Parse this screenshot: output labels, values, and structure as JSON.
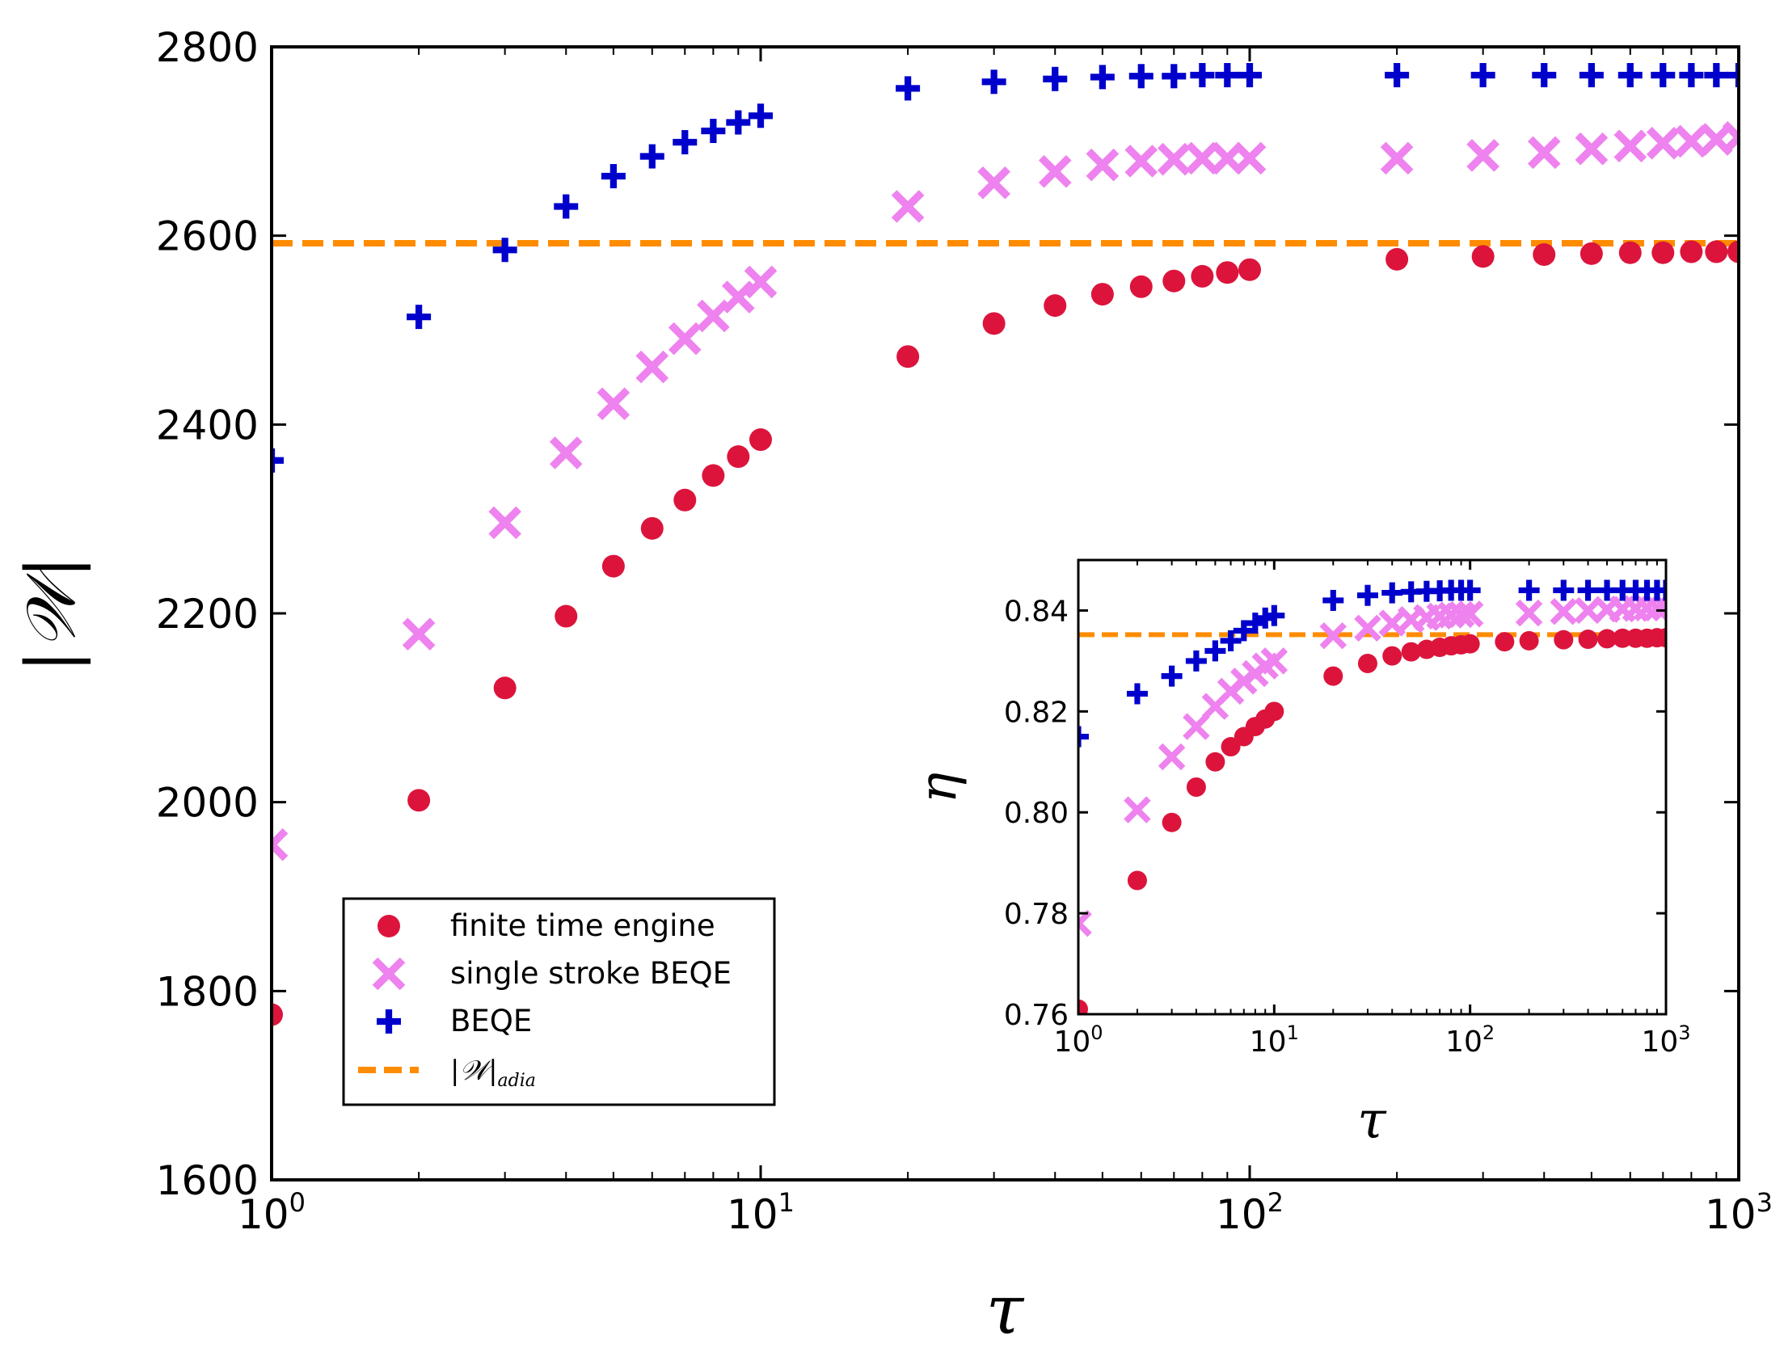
{
  "colors": {
    "finite": "#dc143c",
    "single": "#ee82ee",
    "beqe": "#0000cd",
    "adia": "#ff8c00"
  },
  "chart_data": [
    {
      "id": "main",
      "type": "scatter",
      "xscale": "log",
      "xlim": [
        1,
        1000
      ],
      "ylim": [
        1600,
        2800
      ],
      "xlabel": "τ",
      "ylabel": "|𝒲|",
      "xticks": [
        {
          "value": 1,
          "base": "10",
          "exp": "0"
        },
        {
          "value": 10,
          "base": "10",
          "exp": "1"
        },
        {
          "value": 100,
          "base": "10",
          "exp": "2"
        },
        {
          "value": 1000,
          "base": "10",
          "exp": "3"
        }
      ],
      "yticks": [
        {
          "value": 1600,
          "label": "1600"
        },
        {
          "value": 1800,
          "label": "1800"
        },
        {
          "value": 2000,
          "label": "2000"
        },
        {
          "value": 2200,
          "label": "2200"
        },
        {
          "value": 2400,
          "label": "2400"
        },
        {
          "value": 2600,
          "label": "2600"
        },
        {
          "value": 2800,
          "label": "2800"
        }
      ],
      "legend_position": "lower-left",
      "series": [
        {
          "name": "finite time engine",
          "marker": "circle",
          "color_key": "finite",
          "points": [
            [
              1,
              1775
            ],
            [
              2,
              2002
            ],
            [
              3,
              2121
            ],
            [
              4,
              2197
            ],
            [
              5,
              2250
            ],
            [
              6,
              2290
            ],
            [
              7,
              2320
            ],
            [
              8,
              2346
            ],
            [
              9,
              2366
            ],
            [
              10,
              2384
            ],
            [
              20,
              2472
            ],
            [
              30,
              2507
            ],
            [
              40,
              2526
            ],
            [
              50,
              2538
            ],
            [
              60,
              2546
            ],
            [
              70,
              2552
            ],
            [
              80,
              2557
            ],
            [
              90,
              2561
            ],
            [
              100,
              2564
            ],
            [
              200,
              2575
            ],
            [
              300,
              2578
            ],
            [
              400,
              2580
            ],
            [
              500,
              2581
            ],
            [
              600,
              2582
            ],
            [
              700,
              2582
            ],
            [
              800,
              2583
            ],
            [
              900,
              2583
            ],
            [
              1000,
              2583
            ]
          ]
        },
        {
          "name": "single stroke BEQE",
          "marker": "x",
          "color_key": "single",
          "points": [
            [
              1,
              1955
            ],
            [
              2,
              2178
            ],
            [
              3,
              2296
            ],
            [
              4,
              2370
            ],
            [
              5,
              2422
            ],
            [
              6,
              2461
            ],
            [
              7,
              2491
            ],
            [
              8,
              2515
            ],
            [
              9,
              2535
            ],
            [
              10,
              2551
            ],
            [
              20,
              2631
            ],
            [
              30,
              2656
            ],
            [
              40,
              2668
            ],
            [
              50,
              2675
            ],
            [
              60,
              2679
            ],
            [
              70,
              2681
            ],
            [
              80,
              2682
            ],
            [
              90,
              2682
            ],
            [
              100,
              2682
            ],
            [
              200,
              2682
            ],
            [
              300,
              2685
            ],
            [
              400,
              2688
            ],
            [
              500,
              2692
            ],
            [
              600,
              2695
            ],
            [
              700,
              2698
            ],
            [
              800,
              2700
            ],
            [
              900,
              2702
            ],
            [
              1000,
              2704
            ]
          ]
        },
        {
          "name": "BEQE",
          "marker": "plus",
          "color_key": "beqe",
          "points": [
            [
              1,
              2362
            ],
            [
              2,
              2514
            ],
            [
              3,
              2585
            ],
            [
              4,
              2631
            ],
            [
              5,
              2663
            ],
            [
              6,
              2684
            ],
            [
              7,
              2699
            ],
            [
              8,
              2711
            ],
            [
              9,
              2720
            ],
            [
              10,
              2727
            ],
            [
              20,
              2756
            ],
            [
              30,
              2763
            ],
            [
              40,
              2766
            ],
            [
              50,
              2768
            ],
            [
              60,
              2769
            ],
            [
              70,
              2769
            ],
            [
              80,
              2770
            ],
            [
              90,
              2770
            ],
            [
              100,
              2770
            ],
            [
              200,
              2770
            ],
            [
              300,
              2770
            ],
            [
              400,
              2770
            ],
            [
              500,
              2770
            ],
            [
              600,
              2770
            ],
            [
              700,
              2770
            ],
            [
              800,
              2770
            ],
            [
              900,
              2770
            ],
            [
              1000,
              2770
            ]
          ]
        }
      ],
      "reference_line": {
        "name": "|𝒲|",
        "subscript": "adia",
        "value": 2592,
        "style": "dashed",
        "color_key": "adia"
      }
    },
    {
      "id": "inset",
      "type": "scatter",
      "xscale": "log",
      "xlim": [
        1,
        1000
      ],
      "ylim": [
        0.76,
        0.85
      ],
      "xlabel": "τ",
      "ylabel": "η",
      "xticks": [
        {
          "value": 1,
          "base": "10",
          "exp": "0"
        },
        {
          "value": 10,
          "base": "10",
          "exp": "1"
        },
        {
          "value": 100,
          "base": "10",
          "exp": "2"
        },
        {
          "value": 1000,
          "base": "10",
          "exp": "3"
        }
      ],
      "yticks": [
        {
          "value": 0.76,
          "label": "0.76"
        },
        {
          "value": 0.78,
          "label": "0.78"
        },
        {
          "value": 0.8,
          "label": "0.80"
        },
        {
          "value": 0.82,
          "label": "0.82"
        },
        {
          "value": 0.84,
          "label": "0.84"
        }
      ],
      "series": [
        {
          "name": "finite time engine",
          "marker": "circle",
          "color_key": "finite",
          "points": [
            [
              1,
              0.761
            ],
            [
              2,
              0.7865
            ],
            [
              3,
              0.798
            ],
            [
              4,
              0.805
            ],
            [
              5,
              0.81
            ],
            [
              6,
              0.813
            ],
            [
              7,
              0.815
            ],
            [
              8,
              0.817
            ],
            [
              9,
              0.8185
            ],
            [
              10,
              0.82
            ],
            [
              20,
              0.827
            ],
            [
              30,
              0.8295
            ],
            [
              40,
              0.831
            ],
            [
              50,
              0.8318
            ],
            [
              60,
              0.8323
            ],
            [
              70,
              0.8327
            ],
            [
              80,
              0.833
            ],
            [
              90,
              0.8332
            ],
            [
              100,
              0.8334
            ],
            [
              150,
              0.8338
            ],
            [
              200,
              0.834
            ],
            [
              300,
              0.8342
            ],
            [
              400,
              0.8343
            ],
            [
              500,
              0.8344
            ],
            [
              600,
              0.8345
            ],
            [
              700,
              0.8345
            ],
            [
              800,
              0.8345
            ],
            [
              900,
              0.8346
            ],
            [
              1000,
              0.8346
            ]
          ]
        },
        {
          "name": "single stroke BEQE",
          "marker": "x",
          "color_key": "single",
          "points": [
            [
              1,
              0.778
            ],
            [
              2,
              0.8005
            ],
            [
              3,
              0.811
            ],
            [
              4,
              0.817
            ],
            [
              5,
              0.821
            ],
            [
              6,
              0.824
            ],
            [
              7,
              0.826
            ],
            [
              8,
              0.8275
            ],
            [
              9,
              0.829
            ],
            [
              10,
              0.83
            ],
            [
              20,
              0.835
            ],
            [
              30,
              0.8365
            ],
            [
              40,
              0.8375
            ],
            [
              50,
              0.8382
            ],
            [
              60,
              0.8386
            ],
            [
              70,
              0.8389
            ],
            [
              80,
              0.8391
            ],
            [
              90,
              0.8392
            ],
            [
              100,
              0.8393
            ],
            [
              200,
              0.8395
            ],
            [
              300,
              0.8398
            ],
            [
              400,
              0.84
            ],
            [
              500,
              0.8402
            ],
            [
              600,
              0.8403
            ],
            [
              700,
              0.8404
            ],
            [
              800,
              0.8405
            ],
            [
              900,
              0.8405
            ],
            [
              1000,
              0.8406
            ]
          ]
        },
        {
          "name": "BEQE",
          "marker": "plus",
          "color_key": "beqe",
          "points": [
            [
              1,
              0.815
            ],
            [
              2,
              0.8235
            ],
            [
              3,
              0.827
            ],
            [
              4,
              0.83
            ],
            [
              5,
              0.832
            ],
            [
              6,
              0.834
            ],
            [
              7,
              0.836
            ],
            [
              8,
              0.8375
            ],
            [
              9,
              0.8385
            ],
            [
              10,
              0.839
            ],
            [
              20,
              0.842
            ],
            [
              30,
              0.843
            ],
            [
              40,
              0.8435
            ],
            [
              50,
              0.8437
            ],
            [
              60,
              0.8438
            ],
            [
              70,
              0.8439
            ],
            [
              80,
              0.844
            ],
            [
              90,
              0.844
            ],
            [
              100,
              0.844
            ],
            [
              200,
              0.844
            ],
            [
              300,
              0.844
            ],
            [
              400,
              0.844
            ],
            [
              500,
              0.844
            ],
            [
              600,
              0.844
            ],
            [
              700,
              0.844
            ],
            [
              800,
              0.844
            ],
            [
              900,
              0.844
            ],
            [
              1000,
              0.844
            ]
          ]
        }
      ],
      "reference_line": {
        "value": 0.8352,
        "style": "dashed",
        "color_key": "adia"
      }
    }
  ],
  "legend": {
    "entries": [
      {
        "label": "finite time engine",
        "marker": "circle",
        "color_key": "finite"
      },
      {
        "label": "single stroke BEQE",
        "marker": "x",
        "color_key": "single"
      },
      {
        "label": "BEQE",
        "marker": "plus",
        "color_key": "beqe"
      },
      {
        "label": "|𝒲|",
        "subscript": "adia",
        "marker": "dash",
        "color_key": "adia"
      }
    ]
  }
}
